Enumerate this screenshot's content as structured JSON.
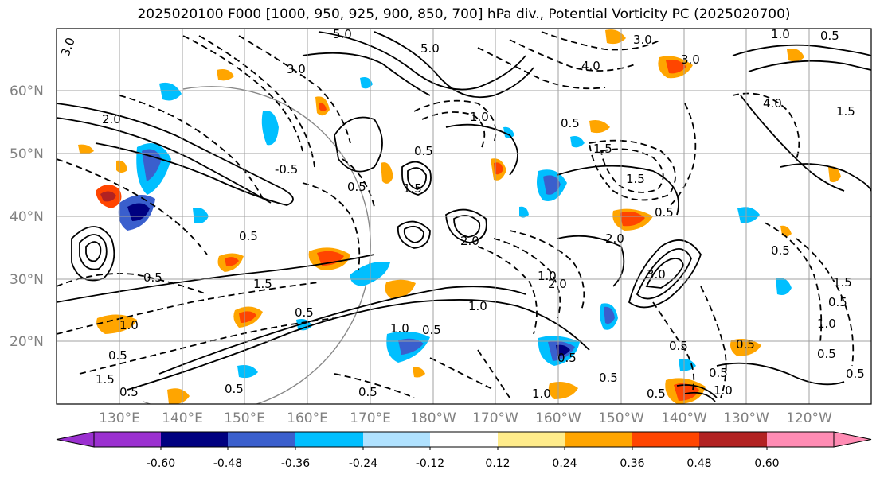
{
  "title": "2025020100 F000 [1000, 950, 925, 900, 850, 700] hPa div., Potential Vorticity PC (2025020700)",
  "map": {
    "lat_labels": [
      "60°N",
      "50°N",
      "40°N",
      "30°N",
      "20°N"
    ],
    "lon_labels": [
      "130°E",
      "140°E",
      "150°E",
      "160°E",
      "170°E",
      "180°W",
      "170°W",
      "160°W",
      "150°W",
      "140°W",
      "130°W",
      "120°W"
    ],
    "grid_color": "#a0a0a0",
    "label_color": "#808080"
  },
  "contour_labels": [
    "3.0",
    "5.0",
    "5.0",
    "4.0",
    "3.0",
    "1.0",
    "0.5",
    "3.0",
    "4.0",
    "3.0",
    "1.5",
    "-0.5",
    "1.0",
    "1.5",
    "2.0",
    "0.5",
    "0.5",
    "2.0",
    "1.5",
    "1.0",
    "0.5",
    "0.5",
    "1.0",
    "0.5",
    "0.5",
    "1.0",
    "1.5",
    "0.5",
    "0.5",
    "1.0",
    "1.5",
    "0.5",
    "0.5",
    "1.0",
    "0.5",
    "0.5",
    "2.0",
    "2.0",
    "3.0",
    "0.5",
    "0.5",
    "1.0",
    "0.5",
    "1.5",
    "0.5",
    "0.5",
    "1.0",
    "0.5",
    "0.5",
    "1.5",
    "0.5",
    "0.5",
    "0.5"
  ],
  "colorbar": {
    "ticks": [
      "-0.60",
      "-0.48",
      "-0.36",
      "-0.24",
      "-0.12",
      "0.12",
      "0.24",
      "0.36",
      "0.48",
      "0.60"
    ],
    "colors": [
      "#9b30d0",
      "#000080",
      "#3a5fcd",
      "#00bfff",
      "#b0e2ff",
      "#ffffff",
      "#ffec8b",
      "#ffa500",
      "#ff4500",
      "#b22222",
      "#ff8cb4"
    ]
  }
}
